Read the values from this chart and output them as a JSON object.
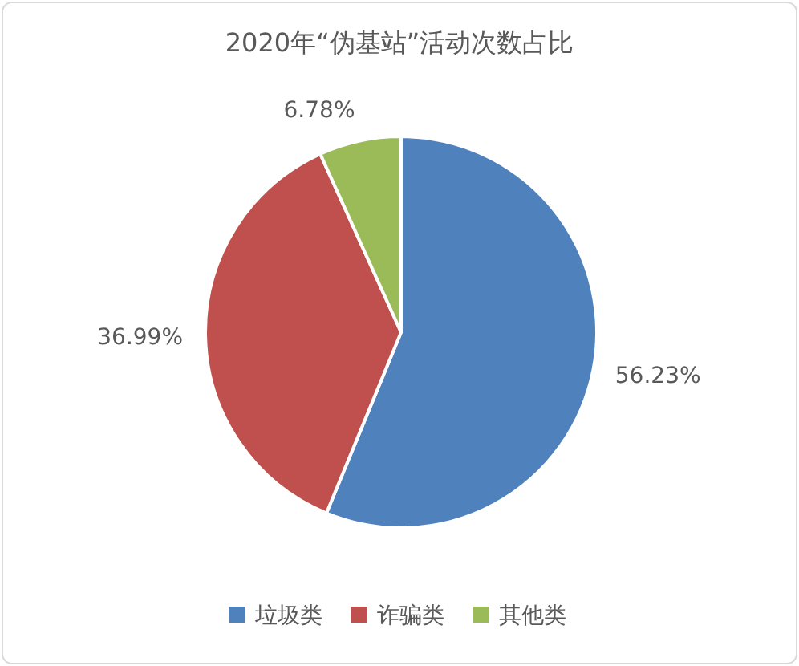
{
  "chart_data": {
    "type": "pie",
    "title": "2020年“伪基站”活动次数占比",
    "categories": [
      "垃圾类",
      "诈骗类",
      "其他类"
    ],
    "values": [
      56.23,
      36.99,
      6.78
    ],
    "value_labels": [
      "56.23%",
      "36.99%",
      "6.78%"
    ],
    "colors": [
      "#4f81bd",
      "#c0504d",
      "#9bbb59"
    ],
    "legend": "bottom"
  }
}
